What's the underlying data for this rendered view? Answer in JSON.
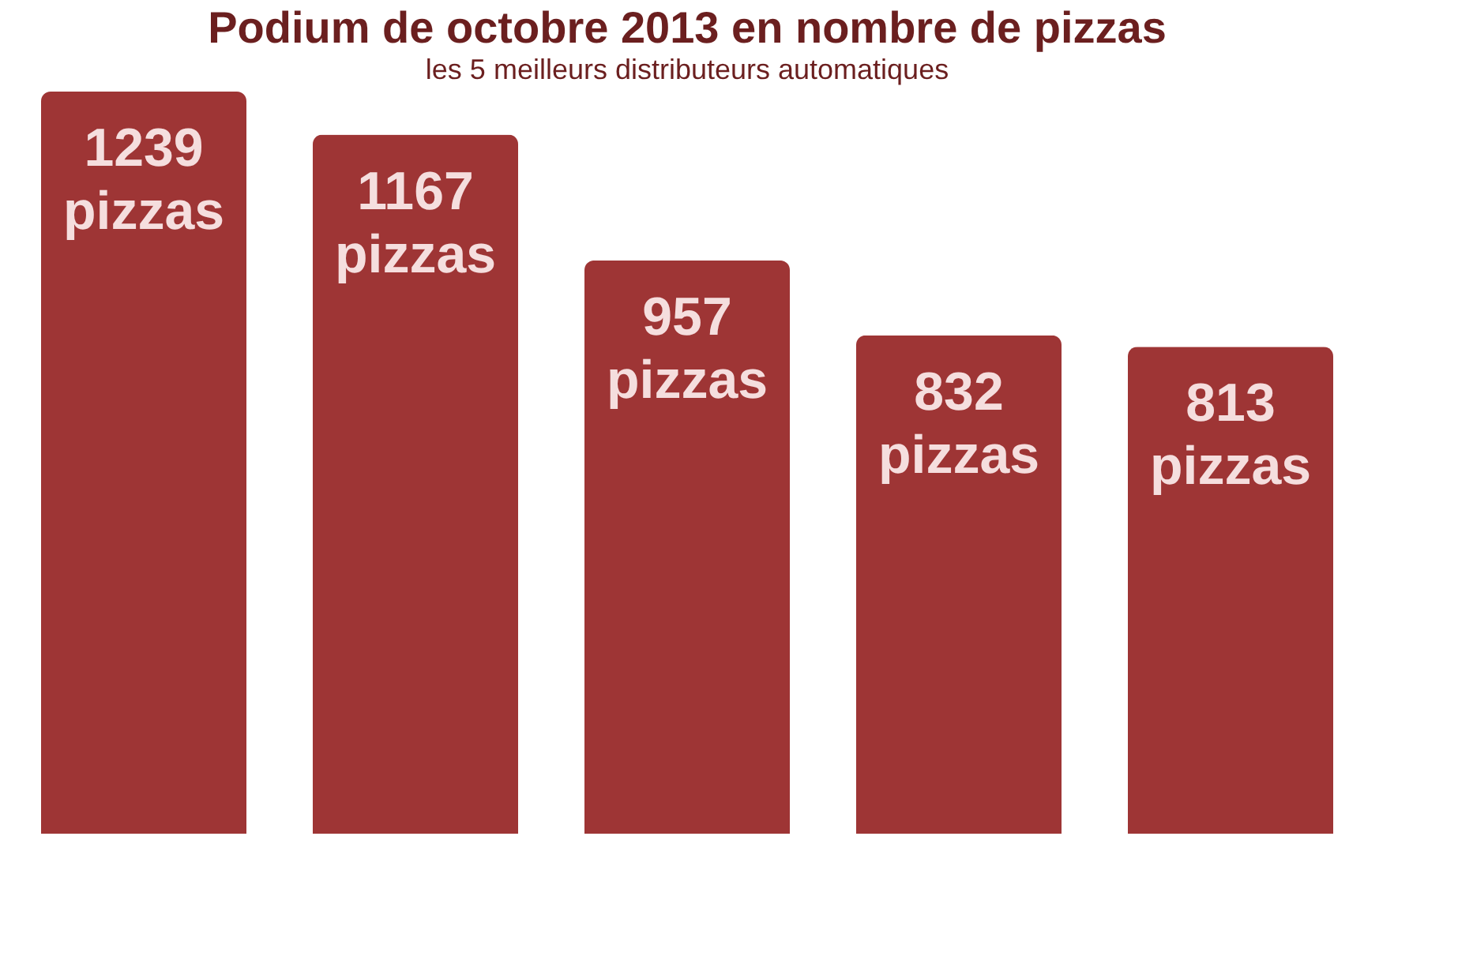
{
  "chart_data": {
    "type": "bar",
    "title": "Podium de octobre 2013 en nombre de pizzas",
    "subtitle": "les 5 meilleurs distributeurs automatiques",
    "categories": [
      null,
      null,
      null,
      null,
      null
    ],
    "values": [
      1239,
      1167,
      957,
      832,
      813
    ],
    "value_labels": [
      "1239 pizzas",
      "1167 pizzas",
      "957 pizzas",
      "832 pizzas",
      "813 pizzas"
    ],
    "color": "#9e3535",
    "grid": false,
    "tick_labels": false
  }
}
